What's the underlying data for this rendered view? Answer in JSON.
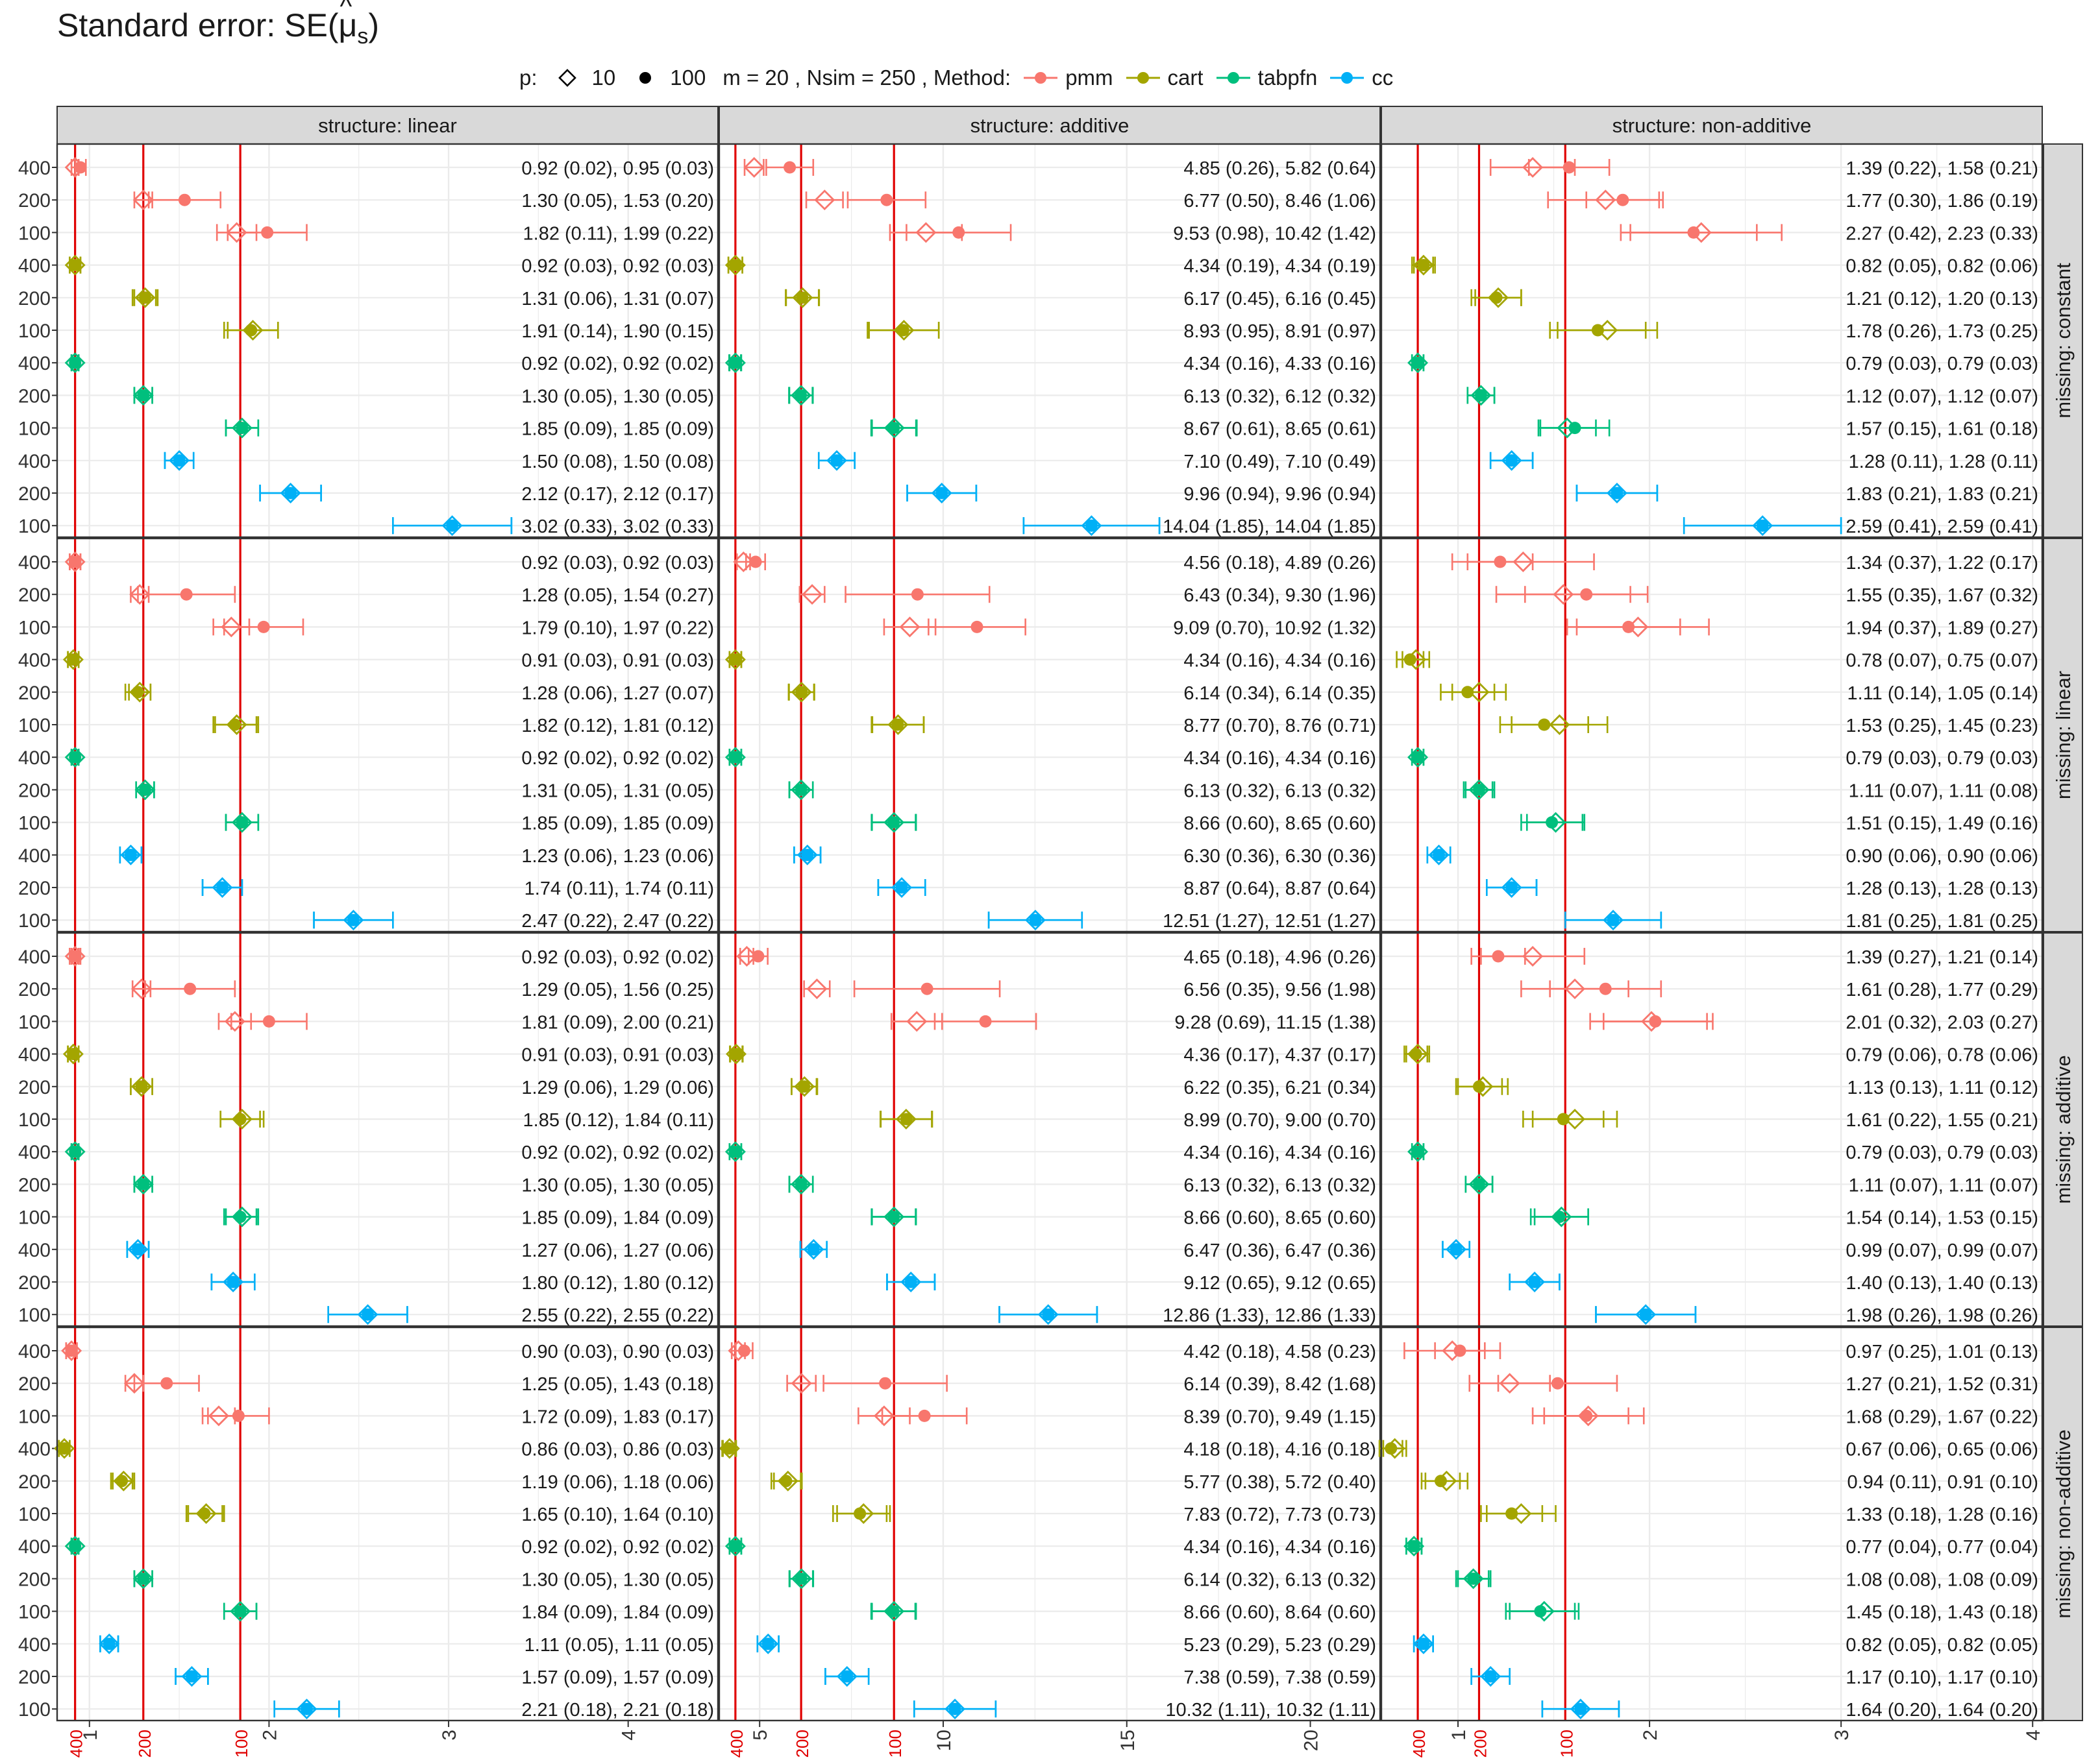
{
  "title": "Standard error:  SE(μ̂s)",
  "title_parts": {
    "prefix": "Standard error:  SE(",
    "mu": "μ",
    "sub": "s",
    "suffix": ")"
  },
  "legend": {
    "p_label": "p:",
    "p_levels": [
      {
        "label": "10",
        "shape": "open-diamond"
      },
      {
        "label": "100",
        "shape": "filled-circle"
      }
    ],
    "settings_text": "m = 20 , Nsim = 250 , Method:",
    "methods": [
      {
        "label": "pmm",
        "color": "#F8766D"
      },
      {
        "label": "cart",
        "color": "#A3A500"
      },
      {
        "label": "tabpfn",
        "color": "#00BF7D"
      },
      {
        "label": "cc",
        "color": "#00B0F6"
      }
    ]
  },
  "chart_data": {
    "type": "scatter",
    "description_of_values": "per row: n, est p=10, sd p=10, est p=100, sd p=100",
    "columns": [
      {
        "strip": "structure: linear",
        "x_ticks": [
          "1",
          "2",
          "3",
          "4"
        ],
        "xlim": [
          0.82,
          4.5
        ],
        "ref_lines": {
          "400": 0.92,
          "200": 1.3,
          "100": 1.84
        }
      },
      {
        "strip": "structure: additive",
        "x_ticks": [
          "5",
          "10",
          "15",
          "20"
        ],
        "xlim": [
          3.9,
          21.9
        ],
        "ref_lines": {
          "400": 4.34,
          "200": 6.13,
          "100": 8.66
        }
      },
      {
        "strip": "structure: non-additive",
        "x_ticks": [
          "1",
          "2",
          "3",
          "4"
        ],
        "xlim": [
          0.6,
          4.05
        ],
        "ref_lines": {
          "400": 0.79,
          "200": 1.11,
          "100": 1.56
        }
      }
    ],
    "rows": [
      {
        "strip": "missing: constant"
      },
      {
        "strip": "missing: linear"
      },
      {
        "strip": "missing: additive"
      },
      {
        "strip": "missing: non-additive"
      }
    ],
    "ref_line_labels": [
      "400",
      "200",
      "100"
    ],
    "y_labels": [
      "400",
      "200",
      "100",
      "400",
      "200",
      "100",
      "400",
      "200",
      "100",
      "400",
      "200",
      "100"
    ],
    "methods_order": [
      "pmm",
      "cart",
      "tabpfn",
      "cc"
    ],
    "cells": [
      [
        [
          [
            400,
            0.92,
            0.02,
            0.95,
            0.03
          ],
          [
            200,
            1.3,
            0.05,
            1.53,
            0.2
          ],
          [
            100,
            1.82,
            0.11,
            1.99,
            0.22
          ],
          [
            400,
            0.92,
            0.03,
            0.92,
            0.03
          ],
          [
            200,
            1.31,
            0.06,
            1.31,
            0.07
          ],
          [
            100,
            1.91,
            0.14,
            1.9,
            0.15
          ],
          [
            400,
            0.92,
            0.02,
            0.92,
            0.02
          ],
          [
            200,
            1.3,
            0.05,
            1.3,
            0.05
          ],
          [
            100,
            1.85,
            0.09,
            1.85,
            0.09
          ],
          [
            400,
            1.5,
            0.08,
            1.5,
            0.08
          ],
          [
            200,
            2.12,
            0.17,
            2.12,
            0.17
          ],
          [
            100,
            3.02,
            0.33,
            3.02,
            0.33
          ]
        ],
        [
          [
            400,
            4.85,
            0.26,
            5.82,
            0.64
          ],
          [
            200,
            6.77,
            0.5,
            8.46,
            1.06
          ],
          [
            100,
            9.53,
            0.98,
            10.42,
            1.42
          ],
          [
            400,
            4.34,
            0.19,
            4.34,
            0.19
          ],
          [
            200,
            6.17,
            0.45,
            6.16,
            0.45
          ],
          [
            100,
            8.93,
            0.95,
            8.91,
            0.97
          ],
          [
            400,
            4.34,
            0.16,
            4.33,
            0.16
          ],
          [
            200,
            6.13,
            0.32,
            6.12,
            0.32
          ],
          [
            100,
            8.67,
            0.61,
            8.65,
            0.61
          ],
          [
            400,
            7.1,
            0.49,
            7.1,
            0.49
          ],
          [
            200,
            9.96,
            0.94,
            9.96,
            0.94
          ],
          [
            100,
            14.04,
            1.85,
            14.04,
            1.85
          ]
        ],
        [
          [
            400,
            1.39,
            0.22,
            1.58,
            0.21
          ],
          [
            200,
            1.77,
            0.3,
            1.86,
            0.19
          ],
          [
            100,
            2.27,
            0.42,
            2.23,
            0.33
          ],
          [
            400,
            0.82,
            0.05,
            0.82,
            0.06
          ],
          [
            200,
            1.21,
            0.12,
            1.2,
            0.13
          ],
          [
            100,
            1.78,
            0.26,
            1.73,
            0.25
          ],
          [
            400,
            0.79,
            0.03,
            0.79,
            0.03
          ],
          [
            200,
            1.12,
            0.07,
            1.12,
            0.07
          ],
          [
            100,
            1.57,
            0.15,
            1.61,
            0.18
          ],
          [
            400,
            1.28,
            0.11,
            1.28,
            0.11
          ],
          [
            200,
            1.83,
            0.21,
            1.83,
            0.21
          ],
          [
            100,
            2.59,
            0.41,
            2.59,
            0.41
          ]
        ]
      ],
      [
        [
          [
            400,
            0.92,
            0.03,
            0.92,
            0.03
          ],
          [
            200,
            1.28,
            0.05,
            1.54,
            0.27
          ],
          [
            100,
            1.79,
            0.1,
            1.97,
            0.22
          ],
          [
            400,
            0.91,
            0.03,
            0.91,
            0.03
          ],
          [
            200,
            1.28,
            0.06,
            1.27,
            0.07
          ],
          [
            100,
            1.82,
            0.12,
            1.81,
            0.12
          ],
          [
            400,
            0.92,
            0.02,
            0.92,
            0.02
          ],
          [
            200,
            1.31,
            0.05,
            1.31,
            0.05
          ],
          [
            100,
            1.85,
            0.09,
            1.85,
            0.09
          ],
          [
            400,
            1.23,
            0.06,
            1.23,
            0.06
          ],
          [
            200,
            1.74,
            0.11,
            1.74,
            0.11
          ],
          [
            100,
            2.47,
            0.22,
            2.47,
            0.22
          ]
        ],
        [
          [
            400,
            4.56,
            0.18,
            4.89,
            0.26
          ],
          [
            200,
            6.43,
            0.34,
            9.3,
            1.96
          ],
          [
            100,
            9.09,
            0.7,
            10.92,
            1.32
          ],
          [
            400,
            4.34,
            0.16,
            4.34,
            0.16
          ],
          [
            200,
            6.14,
            0.34,
            6.14,
            0.35
          ],
          [
            100,
            8.77,
            0.7,
            8.76,
            0.71
          ],
          [
            400,
            4.34,
            0.16,
            4.34,
            0.16
          ],
          [
            200,
            6.13,
            0.32,
            6.13,
            0.32
          ],
          [
            100,
            8.66,
            0.6,
            8.65,
            0.6
          ],
          [
            400,
            6.3,
            0.36,
            6.3,
            0.36
          ],
          [
            200,
            8.87,
            0.64,
            8.87,
            0.64
          ],
          [
            100,
            12.51,
            1.27,
            12.51,
            1.27
          ]
        ],
        [
          [
            400,
            1.34,
            0.37,
            1.22,
            0.17
          ],
          [
            200,
            1.55,
            0.35,
            1.67,
            0.32
          ],
          [
            100,
            1.94,
            0.37,
            1.89,
            0.27
          ],
          [
            400,
            0.78,
            0.07,
            0.75,
            0.07
          ],
          [
            200,
            1.11,
            0.14,
            1.05,
            0.14
          ],
          [
            100,
            1.53,
            0.25,
            1.45,
            0.23
          ],
          [
            400,
            0.79,
            0.03,
            0.79,
            0.03
          ],
          [
            200,
            1.11,
            0.07,
            1.11,
            0.08
          ],
          [
            100,
            1.51,
            0.15,
            1.49,
            0.16
          ],
          [
            400,
            0.9,
            0.06,
            0.9,
            0.06
          ],
          [
            200,
            1.28,
            0.13,
            1.28,
            0.13
          ],
          [
            100,
            1.81,
            0.25,
            1.81,
            0.25
          ]
        ]
      ],
      [
        [
          [
            400,
            0.92,
            0.03,
            0.92,
            0.02
          ],
          [
            200,
            1.29,
            0.05,
            1.56,
            0.25
          ],
          [
            100,
            1.81,
            0.09,
            2.0,
            0.21
          ],
          [
            400,
            0.91,
            0.03,
            0.91,
            0.03
          ],
          [
            200,
            1.29,
            0.06,
            1.29,
            0.06
          ],
          [
            100,
            1.85,
            0.12,
            1.84,
            0.11
          ],
          [
            400,
            0.92,
            0.02,
            0.92,
            0.02
          ],
          [
            200,
            1.3,
            0.05,
            1.3,
            0.05
          ],
          [
            100,
            1.85,
            0.09,
            1.84,
            0.09
          ],
          [
            400,
            1.27,
            0.06,
            1.27,
            0.06
          ],
          [
            200,
            1.8,
            0.12,
            1.8,
            0.12
          ],
          [
            100,
            2.55,
            0.22,
            2.55,
            0.22
          ]
        ],
        [
          [
            400,
            4.65,
            0.18,
            4.96,
            0.26
          ],
          [
            200,
            6.56,
            0.35,
            9.56,
            1.98
          ],
          [
            100,
            9.28,
            0.69,
            11.15,
            1.38
          ],
          [
            400,
            4.36,
            0.17,
            4.37,
            0.17
          ],
          [
            200,
            6.22,
            0.35,
            6.21,
            0.34
          ],
          [
            100,
            8.99,
            0.7,
            9.0,
            0.7
          ],
          [
            400,
            4.34,
            0.16,
            4.34,
            0.16
          ],
          [
            200,
            6.13,
            0.32,
            6.13,
            0.32
          ],
          [
            100,
            8.66,
            0.6,
            8.65,
            0.6
          ],
          [
            400,
            6.47,
            0.36,
            6.47,
            0.36
          ],
          [
            200,
            9.12,
            0.65,
            9.12,
            0.65
          ],
          [
            100,
            12.86,
            1.33,
            12.86,
            1.33
          ]
        ],
        [
          [
            400,
            1.39,
            0.27,
            1.21,
            0.14
          ],
          [
            200,
            1.61,
            0.28,
            1.77,
            0.29
          ],
          [
            100,
            2.01,
            0.32,
            2.03,
            0.27
          ],
          [
            400,
            0.79,
            0.06,
            0.78,
            0.06
          ],
          [
            200,
            1.13,
            0.13,
            1.11,
            0.12
          ],
          [
            100,
            1.61,
            0.22,
            1.55,
            0.21
          ],
          [
            400,
            0.79,
            0.03,
            0.79,
            0.03
          ],
          [
            200,
            1.11,
            0.07,
            1.11,
            0.07
          ],
          [
            100,
            1.54,
            0.14,
            1.53,
            0.15
          ],
          [
            400,
            0.99,
            0.07,
            0.99,
            0.07
          ],
          [
            200,
            1.4,
            0.13,
            1.4,
            0.13
          ],
          [
            100,
            1.98,
            0.26,
            1.98,
            0.26
          ]
        ]
      ],
      [
        [
          [
            400,
            0.9,
            0.03,
            0.9,
            0.03
          ],
          [
            200,
            1.25,
            0.05,
            1.43,
            0.18
          ],
          [
            100,
            1.72,
            0.09,
            1.83,
            0.17
          ],
          [
            400,
            0.86,
            0.03,
            0.86,
            0.03
          ],
          [
            200,
            1.19,
            0.06,
            1.18,
            0.06
          ],
          [
            100,
            1.65,
            0.1,
            1.64,
            0.1
          ],
          [
            400,
            0.92,
            0.02,
            0.92,
            0.02
          ],
          [
            200,
            1.3,
            0.05,
            1.3,
            0.05
          ],
          [
            100,
            1.84,
            0.09,
            1.84,
            0.09
          ],
          [
            400,
            1.11,
            0.05,
            1.11,
            0.05
          ],
          [
            200,
            1.57,
            0.09,
            1.57,
            0.09
          ],
          [
            100,
            2.21,
            0.18,
            2.21,
            0.18
          ]
        ],
        [
          [
            400,
            4.42,
            0.18,
            4.58,
            0.23
          ],
          [
            200,
            6.14,
            0.39,
            8.42,
            1.68
          ],
          [
            100,
            8.39,
            0.7,
            9.49,
            1.15
          ],
          [
            400,
            4.18,
            0.18,
            4.16,
            0.18
          ],
          [
            200,
            5.77,
            0.38,
            5.72,
            0.4
          ],
          [
            100,
            7.83,
            0.72,
            7.73,
            0.73
          ],
          [
            400,
            4.34,
            0.16,
            4.34,
            0.16
          ],
          [
            200,
            6.14,
            0.32,
            6.13,
            0.32
          ],
          [
            100,
            8.66,
            0.6,
            8.64,
            0.6
          ],
          [
            400,
            5.23,
            0.29,
            5.23,
            0.29
          ],
          [
            200,
            7.38,
            0.59,
            7.38,
            0.59
          ],
          [
            100,
            10.32,
            1.11,
            10.32,
            1.11
          ]
        ],
        [
          [
            400,
            0.97,
            0.25,
            1.01,
            0.13
          ],
          [
            200,
            1.27,
            0.21,
            1.52,
            0.31
          ],
          [
            100,
            1.68,
            0.29,
            1.67,
            0.22
          ],
          [
            400,
            0.67,
            0.06,
            0.65,
            0.06
          ],
          [
            200,
            0.94,
            0.11,
            0.91,
            0.1
          ],
          [
            100,
            1.33,
            0.18,
            1.28,
            0.16
          ],
          [
            400,
            0.77,
            0.04,
            0.77,
            0.04
          ],
          [
            200,
            1.08,
            0.08,
            1.08,
            0.09
          ],
          [
            100,
            1.45,
            0.18,
            1.43,
            0.18
          ],
          [
            400,
            0.82,
            0.05,
            0.82,
            0.05
          ],
          [
            200,
            1.17,
            0.1,
            1.17,
            0.1
          ],
          [
            100,
            1.64,
            0.2,
            1.64,
            0.2
          ]
        ]
      ]
    ]
  }
}
